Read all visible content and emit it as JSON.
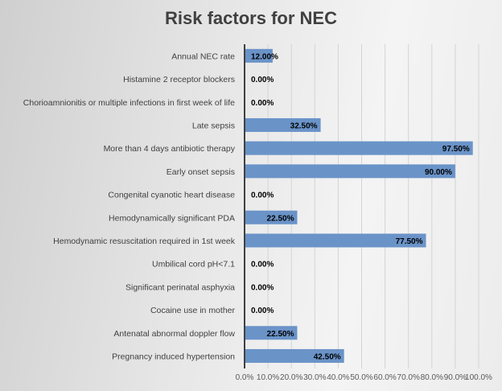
{
  "chart_data": {
    "type": "bar",
    "orientation": "horizontal",
    "title": "Risk factors for NEC",
    "xlabel": "",
    "ylabel": "",
    "xlim": [
      0,
      100
    ],
    "grid": true,
    "legend": "none",
    "bar_color": "#6a93c8",
    "categories": [
      "Annual NEC rate",
      "Histamine 2 receptor blockers",
      "Chorioamnionitis or multiple infections in first week of life",
      "Late sepsis",
      "More than 4 days antibiotic therapy",
      "Early onset sepsis",
      "Congenital cyanotic heart disease",
      "Hemodynamically significant PDA",
      "Hemodynamic resuscitation required in 1st week",
      "Umbilical cord pH<7.1",
      "Significant perinatal asphyxia",
      "Cocaine use in mother",
      "Antenatal abnormal doppler flow",
      "Pregnancy induced hypertension"
    ],
    "values": [
      12.0,
      0.0,
      0.0,
      32.5,
      97.5,
      90.0,
      0.0,
      22.5,
      77.5,
      0.0,
      0.0,
      0.0,
      22.5,
      42.5
    ],
    "data_labels": [
      "12.00%",
      "0.00%",
      "0.00%",
      "32.50%",
      "97.50%",
      "90.00%",
      "0.00%",
      "22.50%",
      "77.50%",
      "0.00%",
      "0.00%",
      "0.00%",
      "22.50%",
      "42.50%"
    ],
    "x_ticks": [
      "0.0%",
      "10.0%",
      "20.0%",
      "30.0%",
      "40.0%",
      "50.0%",
      "60.0%",
      "70.0%",
      "80.0%",
      "90.0%",
      "100.0%"
    ]
  }
}
